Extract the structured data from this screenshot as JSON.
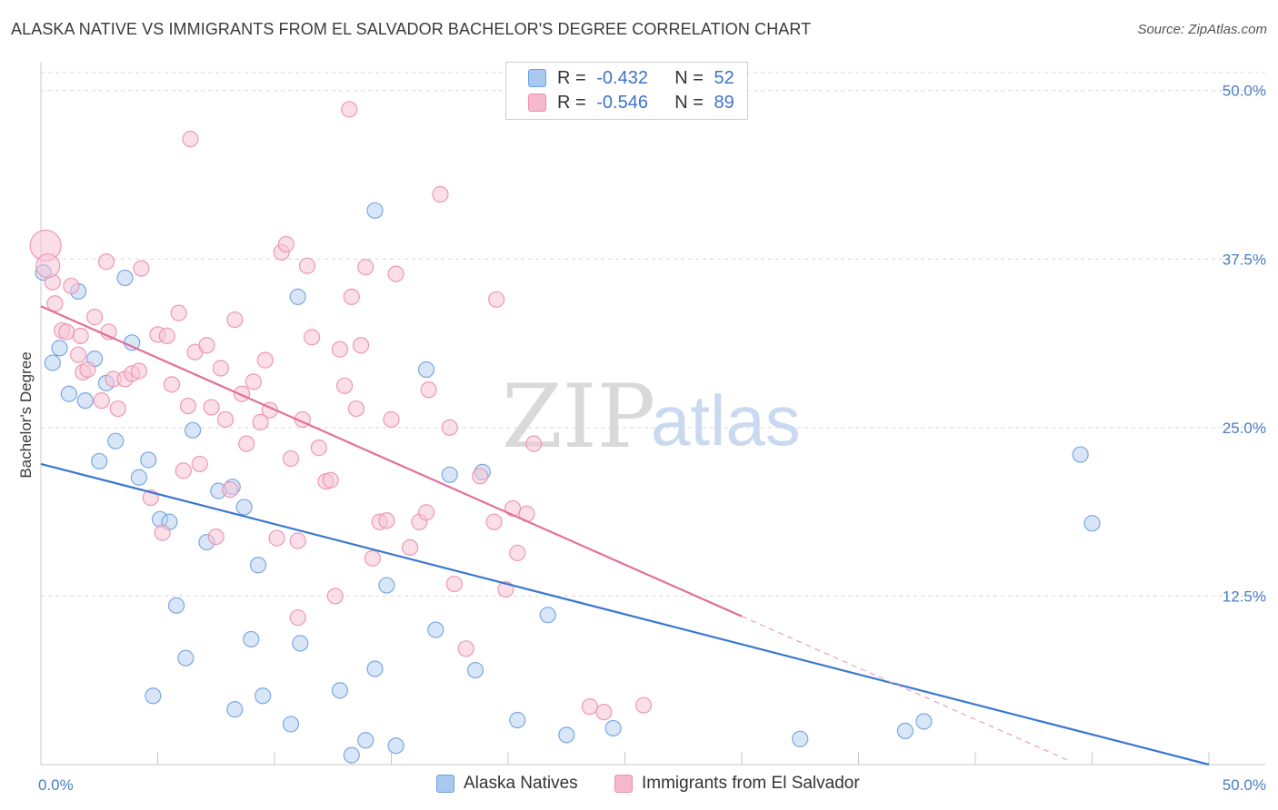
{
  "title": "ALASKA NATIVE VS IMMIGRANTS FROM EL SALVADOR BACHELOR'S DEGREE CORRELATION CHART",
  "source": "Source: ZipAtlas.com",
  "watermark": {
    "zip": "ZIP",
    "atlas": "atlas"
  },
  "legend_top": [
    {
      "r_label": "R =",
      "r_value": "-0.432",
      "n_label": "N =",
      "n_value": "52",
      "color": "#a8c8f0"
    },
    {
      "r_label": "R =",
      "r_value": "-0.546",
      "n_label": "N =",
      "n_value": "89",
      "color": "#f5b8cc"
    }
  ],
  "chart_data": {
    "type": "scatter",
    "ylabel": "Bachelor's Degree",
    "xlim": [
      0,
      50
    ],
    "ylim": [
      0,
      52
    ],
    "x_tick_labels": [
      "0.0%",
      "50.0%"
    ],
    "y_ticks": [
      12.5,
      25.0,
      37.5,
      50.0
    ],
    "y_tick_labels": [
      "12.5%",
      "25.0%",
      "37.5%",
      "50.0%"
    ],
    "grid": true,
    "series": [
      {
        "name": "Alaska Natives",
        "color": "#6ea0e0",
        "fill": "#b8d2f3",
        "trend": {
          "x1": 0,
          "y1": 22.3,
          "x2": 50,
          "y2": 0
        },
        "points": [
          [
            0.1,
            36.5
          ],
          [
            0.5,
            29.8
          ],
          [
            0.8,
            30.9
          ],
          [
            1.2,
            27.5
          ],
          [
            1.6,
            35.1
          ],
          [
            1.9,
            27.0
          ],
          [
            2.3,
            30.1
          ],
          [
            2.5,
            22.5
          ],
          [
            2.8,
            28.3
          ],
          [
            3.2,
            24.0
          ],
          [
            3.6,
            36.1
          ],
          [
            3.9,
            31.3
          ],
          [
            4.2,
            21.3
          ],
          [
            4.6,
            22.6
          ],
          [
            5.1,
            18.2
          ],
          [
            5.5,
            18.0
          ],
          [
            5.8,
            11.8
          ],
          [
            6.2,
            7.9
          ],
          [
            6.5,
            24.8
          ],
          [
            7.1,
            16.5
          ],
          [
            7.6,
            20.3
          ],
          [
            8.2,
            20.6
          ],
          [
            8.7,
            19.1
          ],
          [
            9.3,
            14.8
          ],
          [
            11.0,
            34.7
          ],
          [
            14.3,
            41.1
          ],
          [
            14.8,
            13.3
          ],
          [
            16.5,
            29.3
          ],
          [
            17.5,
            21.5
          ],
          [
            18.9,
            21.7
          ],
          [
            16.9,
            10.0
          ],
          [
            18.6,
            7.0
          ],
          [
            21.7,
            11.1
          ],
          [
            4.8,
            5.1
          ],
          [
            8.3,
            4.1
          ],
          [
            9.0,
            9.3
          ],
          [
            9.5,
            5.1
          ],
          [
            10.7,
            3.0
          ],
          [
            11.1,
            9.0
          ],
          [
            12.8,
            5.5
          ],
          [
            13.3,
            0.7
          ],
          [
            13.9,
            1.8
          ],
          [
            14.3,
            7.1
          ],
          [
            15.2,
            1.4
          ],
          [
            20.4,
            3.3
          ],
          [
            22.5,
            2.2
          ],
          [
            24.5,
            2.7
          ],
          [
            32.5,
            1.9
          ],
          [
            37.0,
            2.5
          ],
          [
            37.8,
            3.2
          ],
          [
            44.5,
            23.0
          ],
          [
            45.0,
            17.9
          ]
        ]
      },
      {
        "name": "Immigrants from El Salvador",
        "color": "#eb8fae",
        "fill": "#f7c5d5",
        "trend": {
          "x1": 0,
          "y1": 34.0,
          "x2": 30.0,
          "y2": 11.0
        },
        "trend_dashed": {
          "x1": 30.0,
          "y1": 11.0,
          "x2": 44.0,
          "y2": 0.3
        },
        "points": [
          [
            0.2,
            38.5
          ],
          [
            0.5,
            35.8
          ],
          [
            0.6,
            34.2
          ],
          [
            0.9,
            32.2
          ],
          [
            1.1,
            32.1
          ],
          [
            1.3,
            35.5
          ],
          [
            1.6,
            30.4
          ],
          [
            1.7,
            31.8
          ],
          [
            1.8,
            29.1
          ],
          [
            2.0,
            29.3
          ],
          [
            2.3,
            33.2
          ],
          [
            2.6,
            27.0
          ],
          [
            2.8,
            37.3
          ],
          [
            2.9,
            32.1
          ],
          [
            3.1,
            28.6
          ],
          [
            3.3,
            26.4
          ],
          [
            3.6,
            28.6
          ],
          [
            3.9,
            29.0
          ],
          [
            4.2,
            29.2
          ],
          [
            4.3,
            36.8
          ],
          [
            4.7,
            19.8
          ],
          [
            5.0,
            31.9
          ],
          [
            5.2,
            17.2
          ],
          [
            5.4,
            31.8
          ],
          [
            5.6,
            28.2
          ],
          [
            5.9,
            33.5
          ],
          [
            6.1,
            21.8
          ],
          [
            6.3,
            26.6
          ],
          [
            6.6,
            30.6
          ],
          [
            6.8,
            22.3
          ],
          [
            7.1,
            31.1
          ],
          [
            7.3,
            26.5
          ],
          [
            7.5,
            16.9
          ],
          [
            7.7,
            29.4
          ],
          [
            7.9,
            25.6
          ],
          [
            8.1,
            20.4
          ],
          [
            8.3,
            33.0
          ],
          [
            8.6,
            27.5
          ],
          [
            8.8,
            23.8
          ],
          [
            9.1,
            28.4
          ],
          [
            9.4,
            25.4
          ],
          [
            9.6,
            30.0
          ],
          [
            9.8,
            26.3
          ],
          [
            10.1,
            16.8
          ],
          [
            10.3,
            38.0
          ],
          [
            10.5,
            38.6
          ],
          [
            10.7,
            22.7
          ],
          [
            11.0,
            16.6
          ],
          [
            11.2,
            25.6
          ],
          [
            11.4,
            37.0
          ],
          [
            11.6,
            31.7
          ],
          [
            11.9,
            23.5
          ],
          [
            12.2,
            21.0
          ],
          [
            12.4,
            21.1
          ],
          [
            12.6,
            12.5
          ],
          [
            12.8,
            30.8
          ],
          [
            13.0,
            28.1
          ],
          [
            13.3,
            34.7
          ],
          [
            13.5,
            26.4
          ],
          [
            13.7,
            31.1
          ],
          [
            13.9,
            36.9
          ],
          [
            14.2,
            15.3
          ],
          [
            14.5,
            18.0
          ],
          [
            14.8,
            18.1
          ],
          [
            15.0,
            25.6
          ],
          [
            15.2,
            36.4
          ],
          [
            15.8,
            16.1
          ],
          [
            16.2,
            18.0
          ],
          [
            16.5,
            18.7
          ],
          [
            16.6,
            27.8
          ],
          [
            17.1,
            42.3
          ],
          [
            17.5,
            25.0
          ],
          [
            17.7,
            13.4
          ],
          [
            18.2,
            8.6
          ],
          [
            18.8,
            21.4
          ],
          [
            19.4,
            18.0
          ],
          [
            19.5,
            34.5
          ],
          [
            19.9,
            13.0
          ],
          [
            20.2,
            19.0
          ],
          [
            20.4,
            15.7
          ],
          [
            20.8,
            18.6
          ],
          [
            21.1,
            23.8
          ],
          [
            13.2,
            48.6
          ],
          [
            6.4,
            46.4
          ],
          [
            11.0,
            10.9
          ],
          [
            23.5,
            4.3
          ],
          [
            24.1,
            3.9
          ],
          [
            25.8,
            4.4
          ],
          [
            0.3,
            37.0
          ]
        ]
      }
    ]
  },
  "bottom_legend": [
    {
      "label": "Alaska Natives",
      "color": "#a8c8f0"
    },
    {
      "label": "Immigrants from El Salvador",
      "color": "#f5b8cc"
    }
  ]
}
